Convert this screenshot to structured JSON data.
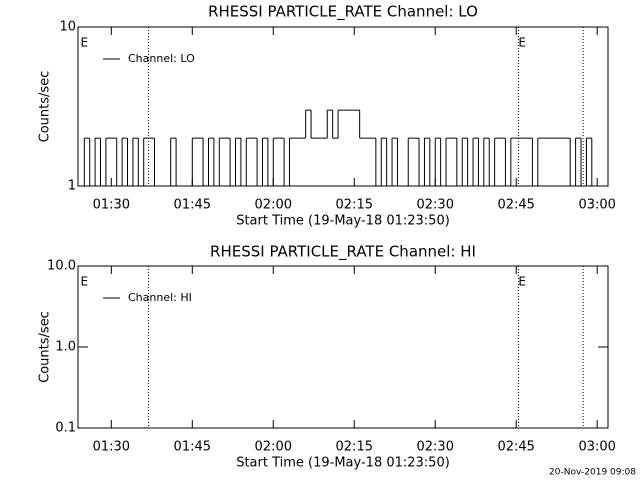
{
  "chart_data": [
    {
      "type": "line",
      "title": "RHESSI PARTICLE_RATE Channel: LO",
      "xlabel": "Start Time (19-May-18 01:23:50)",
      "ylabel": "Counts/sec",
      "ylog": true,
      "grid": false,
      "legend": "upper left",
      "xlim": [
        83.83,
        182
      ],
      "ylim": [
        1,
        10
      ],
      "xticks": [
        {
          "value": 90,
          "label": "01:30"
        },
        {
          "value": 105,
          "label": "01:45"
        },
        {
          "value": 120,
          "label": "02:00"
        },
        {
          "value": 135,
          "label": "02:15"
        },
        {
          "value": 150,
          "label": "02:30"
        },
        {
          "value": 165,
          "label": "02:45"
        },
        {
          "value": 180,
          "label": "03:00"
        }
      ],
      "yticks": [
        1,
        10
      ],
      "vlines": [
        96.9,
        165.4,
        177.4
      ],
      "annotations": [
        {
          "x": 84.3,
          "text": "E"
        },
        {
          "x": 165.4,
          "text": "E"
        }
      ],
      "series": [
        {
          "name": "Channel: LO",
          "color": "#000000",
          "x": [
            84,
            85,
            86,
            87,
            88,
            89,
            90,
            91,
            92,
            93,
            94,
            95,
            96,
            97,
            98,
            99,
            100,
            101,
            102,
            103,
            104,
            105,
            106,
            107,
            108,
            109,
            110,
            111,
            112,
            113,
            114,
            115,
            116,
            117,
            118,
            119,
            120,
            121,
            122,
            123,
            124,
            125,
            126,
            127,
            128,
            129,
            130,
            131,
            132,
            133,
            134,
            135,
            136,
            137,
            138,
            139,
            140,
            141,
            142,
            143,
            144,
            145,
            146,
            147,
            148,
            149,
            150,
            151,
            152,
            153,
            154,
            155,
            156,
            157,
            158,
            159,
            160,
            161,
            162,
            163,
            164,
            165,
            166,
            167,
            168,
            169,
            170,
            171,
            172,
            173,
            174,
            175,
            176,
            177,
            178,
            179,
            180,
            181
          ],
          "values": [
            1,
            2,
            1,
            2,
            1,
            2,
            2,
            1,
            2,
            1,
            2,
            1,
            2,
            2,
            1,
            1,
            1,
            2,
            1,
            1,
            1,
            2,
            2,
            1,
            2,
            1,
            2,
            2,
            1,
            2,
            1,
            2,
            2,
            1,
            2,
            1,
            2,
            2,
            1,
            2,
            2,
            2,
            3,
            2,
            2,
            2,
            3,
            2,
            3,
            3,
            3,
            3,
            2,
            2,
            2,
            1,
            2,
            1,
            2,
            1,
            1,
            2,
            2,
            1,
            2,
            1,
            2,
            1,
            2,
            2,
            1,
            2,
            1,
            2,
            1,
            2,
            1,
            2,
            2,
            1,
            2,
            2,
            2,
            2,
            1,
            2,
            2,
            2,
            2,
            2,
            2,
            1,
            2,
            1,
            2,
            1,
            1,
            1
          ]
        }
      ]
    },
    {
      "type": "line",
      "title": "RHESSI PARTICLE_RATE Channel: HI",
      "xlabel": "Start Time (19-May-18 01:23:50)",
      "ylabel": "Counts/sec",
      "ylog": true,
      "grid": false,
      "legend": "upper left",
      "xlim": [
        83.83,
        182
      ],
      "ylim": [
        0.1,
        10
      ],
      "xticks": [
        {
          "value": 90,
          "label": "01:30"
        },
        {
          "value": 105,
          "label": "01:45"
        },
        {
          "value": 120,
          "label": "02:00"
        },
        {
          "value": 135,
          "label": "02:15"
        },
        {
          "value": 150,
          "label": "02:30"
        },
        {
          "value": 165,
          "label": "02:45"
        },
        {
          "value": 180,
          "label": "03:00"
        }
      ],
      "yticks": [
        0.1,
        {
          "value": 1,
          "label": "1.0"
        },
        {
          "value": 10,
          "label": "10.0"
        }
      ],
      "vlines": [
        96.9,
        165.4,
        177.4
      ],
      "annotations": [
        {
          "x": 84.3,
          "text": "E"
        },
        {
          "x": 165.4,
          "text": "E"
        }
      ],
      "series": [
        {
          "name": "Channel: HI",
          "color": "#000000",
          "x": [],
          "values": []
        }
      ]
    }
  ],
  "footer": "20-Nov-2019 09:08"
}
